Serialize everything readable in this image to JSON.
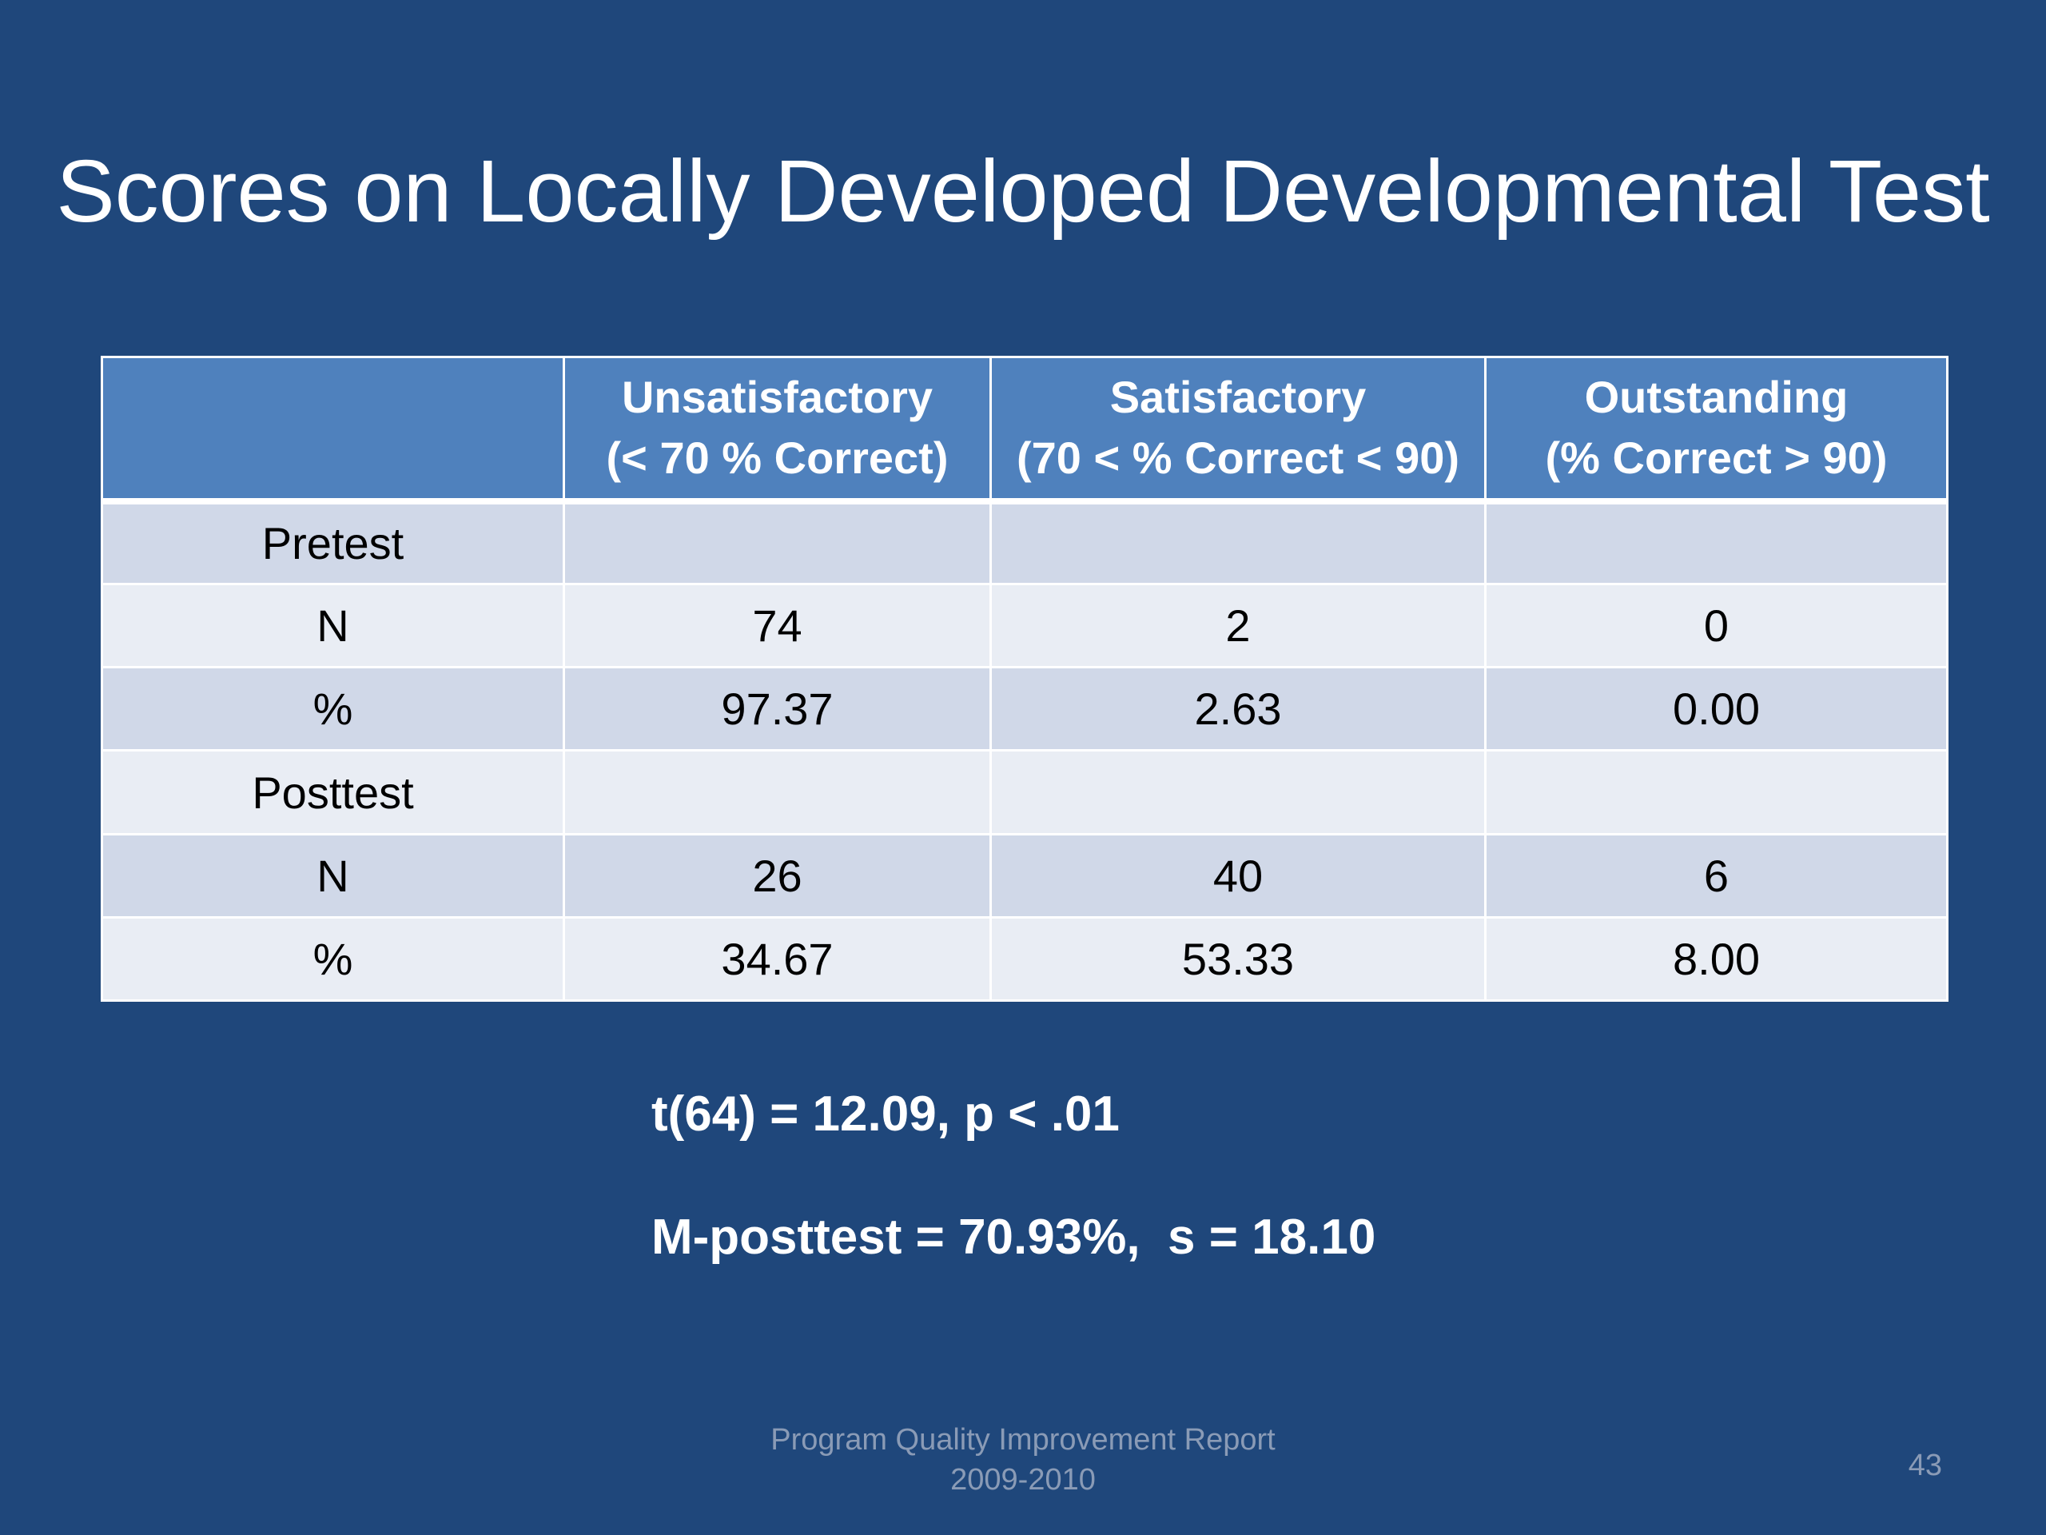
{
  "slide": {
    "title": "Scores on Locally Developed Developmental Test",
    "table": {
      "headers": [
        {
          "line1": "",
          "line2": ""
        },
        {
          "line1": "Unsatisfactory",
          "line2": "(< 70 % Correct)"
        },
        {
          "line1": "Satisfactory",
          "line2": "(70 < % Correct < 90)"
        },
        {
          "line1": "Outstanding",
          "line2": "(% Correct > 90)"
        }
      ],
      "rows": [
        [
          "Pretest",
          "",
          "",
          ""
        ],
        [
          "N",
          "74",
          "2",
          "0"
        ],
        [
          "%",
          "97.37",
          "2.63",
          "0.00"
        ],
        [
          "Posttest",
          "",
          "",
          ""
        ],
        [
          "N",
          "26",
          "40",
          "6"
        ],
        [
          "%",
          "34.67",
          "53.33",
          "8.00"
        ]
      ]
    },
    "stats": {
      "ttest": "t(64) = 12.09, p < .01",
      "mean": "M-posttest = 70.93%,  s = 18.10"
    },
    "footer": {
      "line1": "Program Quality Improvement Report",
      "line2": "2009-2010"
    },
    "page_number": "43"
  },
  "colors": {
    "background": "#1f477b",
    "header_fill": "#4f81bd",
    "row_dark": "#d0d8e8",
    "row_light": "#e9edf4",
    "footer_text": "#8a9bb6"
  }
}
